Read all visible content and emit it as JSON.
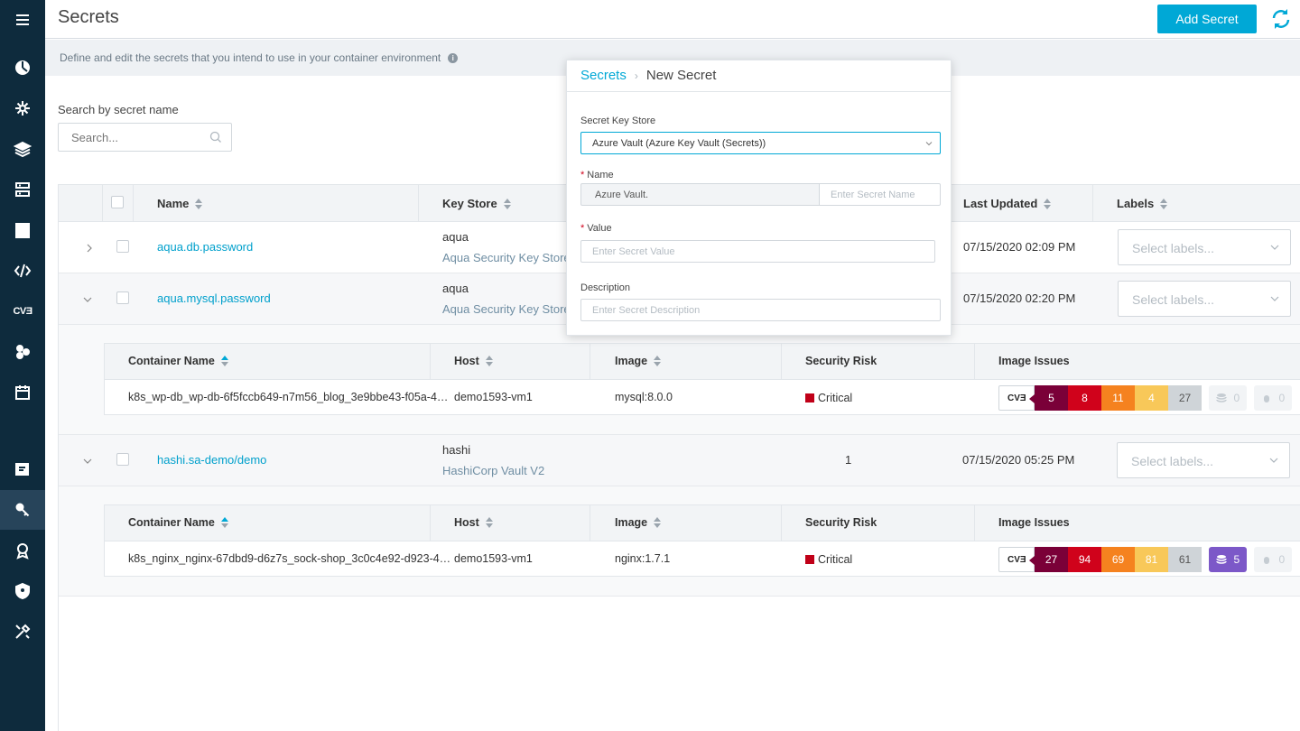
{
  "app": {
    "page_title": "Secrets",
    "add_button": "Add Secret",
    "description": "Define and edit the secrets that you intend to use in your container environment",
    "info_icon": "i"
  },
  "sidebar": {
    "items": [
      {
        "icon": "menu-icon"
      },
      {
        "icon": "dashboard-icon"
      },
      {
        "icon": "risk-explorer-icon"
      },
      {
        "icon": "images-icon"
      },
      {
        "icon": "workloads-icon"
      },
      {
        "icon": "infrastructure-icon"
      },
      {
        "icon": "functions-icon"
      },
      {
        "icon": "vulnerabilities-icon",
        "label": "CVƎ"
      },
      {
        "icon": "services-icon"
      },
      {
        "icon": "calendar-icon"
      },
      {
        "icon": "audit-icon"
      },
      {
        "icon": "secrets-icon"
      },
      {
        "icon": "compliance-icon"
      },
      {
        "icon": "policies-icon"
      },
      {
        "icon": "settings-icon"
      }
    ]
  },
  "search": {
    "label": "Search by secret name",
    "placeholder": "Search..."
  },
  "table": {
    "columns": {
      "name": "Name",
      "key_store": "Key Store",
      "last_updated": "Last Updated",
      "labels": "Labels"
    },
    "select_labels_placeholder": "Select labels...",
    "rows": [
      {
        "name": "aqua.db.password",
        "store": "aqua",
        "store_type": "Aqua Security Key Store",
        "updated": "07/15/2020 02:09 PM"
      },
      {
        "name": "aqua.mysql.password",
        "store": "aqua",
        "store_type": "Aqua Security Key Store",
        "updated": "07/15/2020 02:20 PM"
      },
      {
        "name": "hashi.sa-demo/demo",
        "store": "hashi",
        "store_type": "HashiCorp Vault V2",
        "count": "1",
        "updated": "07/15/2020 05:25 PM"
      }
    ]
  },
  "sub_table": {
    "columns": {
      "container_name": "Container Name",
      "host": "Host",
      "image": "Image",
      "security_risk": "Security Risk",
      "image_issues": "Image Issues"
    },
    "rows": [
      {
        "container": "k8s_wp-db_wp-db-6f5fccb649-n7m56_blog_3e9bbe43-f05a-4…",
        "host": "demo1593-vm1",
        "image": "mysql:8.0.0",
        "risk": "Critical",
        "cve": "CVƎ",
        "critical": "5",
        "high": "8",
        "medium": "11",
        "low": "4",
        "negligible": "27",
        "malware": "0",
        "sensitive": "0"
      },
      {
        "container": "k8s_nginx_nginx-67dbd9-d6z7s_sock-shop_3c0c4e92-d923-4…",
        "host": "demo1593-vm1",
        "image": "nginx:1.7.1",
        "risk": "Critical",
        "cve": "CVƎ",
        "critical": "27",
        "high": "94",
        "medium": "69",
        "low": "81",
        "negligible": "61",
        "malware": "5",
        "sensitive": "0"
      }
    ]
  },
  "modal": {
    "crumb_parent": "Secrets",
    "crumb_current": "New Secret",
    "key_store_label": "Secret Key Store",
    "key_store_value": "Azure Vault (Azure Key Vault (Secrets))",
    "required_mark": "*",
    "name_label": "Name",
    "name_prefix": "Azure Vault.",
    "name_placeholder": "Enter Secret Name",
    "value_label": "Value",
    "value_placeholder": "Enter Secret Value",
    "description_label": "Description",
    "description_placeholder": "Enter Secret Description"
  },
  "colors": {
    "accent": "#00a8d6",
    "sidebar": "#0e2b3d",
    "critical": "#7a0038",
    "high": "#d0021b",
    "medium": "#f5821f",
    "low": "#f8c859",
    "negligible": "#cfd4d8",
    "malware": "#7c58c8"
  }
}
